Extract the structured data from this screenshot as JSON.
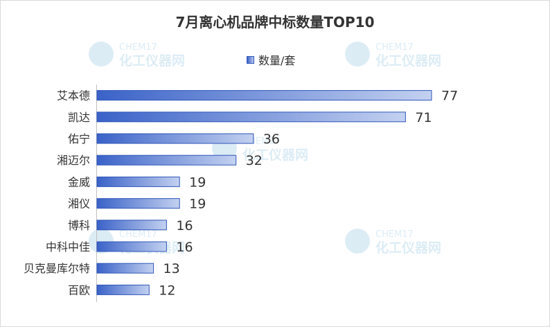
{
  "chart_data": {
    "type": "bar",
    "orientation": "horizontal",
    "title": "7月离心机品牌中标数量TOP10",
    "legend": {
      "label": "数量/套",
      "position": "top"
    },
    "categories": [
      "艾本德",
      "凯达",
      "佑宁",
      "湘迈尔",
      "金威",
      "湘仪",
      "博科",
      "中科中佳",
      "贝克曼库尔特",
      "百欧"
    ],
    "series": [
      {
        "name": "数量/套",
        "values": [
          77,
          71,
          36,
          32,
          19,
          19,
          16,
          16,
          13,
          12
        ]
      }
    ],
    "xlim": [
      0,
      77
    ],
    "grid": false,
    "colors": {
      "bar_start": "#3a62c8",
      "bar_end": "#c3d1f0",
      "bar_border": "#2f55b8"
    }
  },
  "watermark": {
    "line1": "CHEM17",
    "line2": "化工仪器网"
  }
}
